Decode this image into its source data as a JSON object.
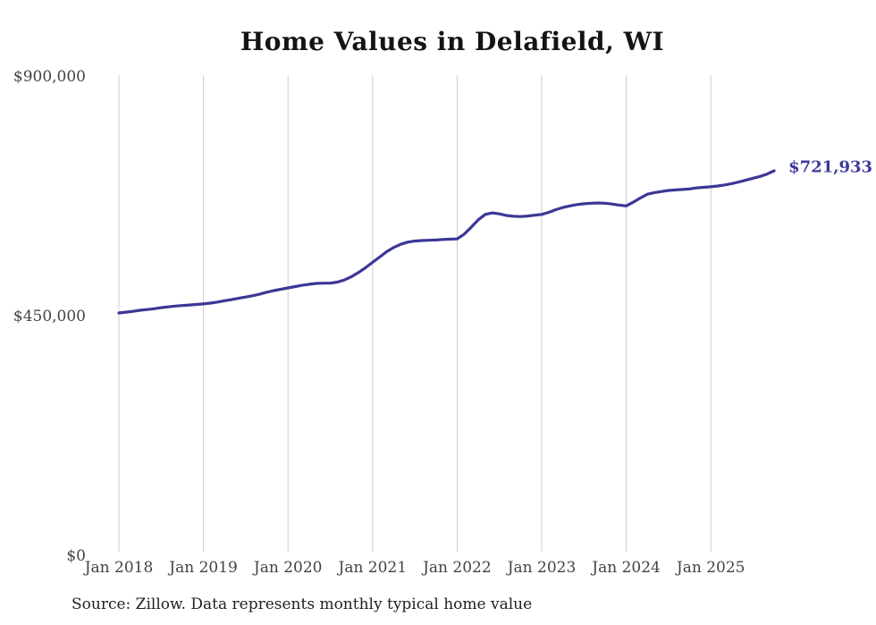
{
  "chart": {
    "title": "Home Values in Delafield, WI",
    "end_label": "$721,933",
    "source": "Source: Zillow. Data represents monthly typical home value",
    "colors": {
      "line": "#3c3796",
      "end_label_text": "#3d3a99",
      "grid": "#cccccc",
      "tick_text": "#434343",
      "title_text": "#141414",
      "source_text": "#222222",
      "background": "#ffffff"
    }
  },
  "chart_data": {
    "type": "line",
    "title": "Home Values in Delafield, WI",
    "xlabel": "",
    "ylabel": "",
    "ylim": [
      0,
      900000
    ],
    "grid": "vertical-only",
    "legend": "none",
    "y_ticks": [
      {
        "value": 0,
        "label": "$0"
      },
      {
        "value": 450000,
        "label": "$450,000"
      },
      {
        "value": 900000,
        "label": "$900,000"
      }
    ],
    "x_ticks": [
      {
        "month": "2018-01",
        "label": "Jan 2018"
      },
      {
        "month": "2019-01",
        "label": "Jan 2019"
      },
      {
        "month": "2020-01",
        "label": "Jan 2020"
      },
      {
        "month": "2021-01",
        "label": "Jan 2021"
      },
      {
        "month": "2022-01",
        "label": "Jan 2022"
      },
      {
        "month": "2023-01",
        "label": "Jan 2023"
      },
      {
        "month": "2024-01",
        "label": "Jan 2024"
      },
      {
        "month": "2025-01",
        "label": "Jan 2025"
      }
    ],
    "last_value": 721933,
    "last_value_label": "$721,933",
    "series": [
      {
        "name": "Typical home value",
        "points": [
          [
            "2018-01",
            455000
          ],
          [
            "2018-02",
            456500
          ],
          [
            "2018-03",
            458000
          ],
          [
            "2018-04",
            460000
          ],
          [
            "2018-05",
            461500
          ],
          [
            "2018-06",
            463000
          ],
          [
            "2018-07",
            465000
          ],
          [
            "2018-08",
            466500
          ],
          [
            "2018-09",
            468000
          ],
          [
            "2018-10",
            469000
          ],
          [
            "2018-11",
            470000
          ],
          [
            "2018-12",
            471000
          ],
          [
            "2019-01",
            472000
          ],
          [
            "2019-02",
            473500
          ],
          [
            "2019-03",
            475500
          ],
          [
            "2019-04",
            478000
          ],
          [
            "2019-05",
            480000
          ],
          [
            "2019-06",
            482500
          ],
          [
            "2019-07",
            485000
          ],
          [
            "2019-08",
            487500
          ],
          [
            "2019-09",
            490500
          ],
          [
            "2019-10",
            494000
          ],
          [
            "2019-11",
            497000
          ],
          [
            "2019-12",
            499500
          ],
          [
            "2020-01",
            502000
          ],
          [
            "2020-02",
            504500
          ],
          [
            "2020-03",
            507000
          ],
          [
            "2020-04",
            509000
          ],
          [
            "2020-05",
            510500
          ],
          [
            "2020-06",
            511000
          ],
          [
            "2020-07",
            511000
          ],
          [
            "2020-08",
            513000
          ],
          [
            "2020-09",
            517000
          ],
          [
            "2020-10",
            523000
          ],
          [
            "2020-11",
            531000
          ],
          [
            "2020-12",
            540000
          ],
          [
            "2021-01",
            550000
          ],
          [
            "2021-02",
            560000
          ],
          [
            "2021-03",
            570000
          ],
          [
            "2021-04",
            578000
          ],
          [
            "2021-05",
            584000
          ],
          [
            "2021-06",
            588000
          ],
          [
            "2021-07",
            590000
          ],
          [
            "2021-08",
            591000
          ],
          [
            "2021-09",
            591500
          ],
          [
            "2021-10",
            592000
          ],
          [
            "2021-11",
            593000
          ],
          [
            "2021-12",
            593500
          ],
          [
            "2022-01",
            594000
          ],
          [
            "2022-02",
            603000
          ],
          [
            "2022-03",
            616000
          ],
          [
            "2022-04",
            630000
          ],
          [
            "2022-05",
            640000
          ],
          [
            "2022-06",
            643000
          ],
          [
            "2022-07",
            641000
          ],
          [
            "2022-08",
            638000
          ],
          [
            "2022-09",
            636500
          ],
          [
            "2022-10",
            636000
          ],
          [
            "2022-11",
            637000
          ],
          [
            "2022-12",
            638500
          ],
          [
            "2023-01",
            640000
          ],
          [
            "2023-02",
            644000
          ],
          [
            "2023-03",
            649000
          ],
          [
            "2023-04",
            653000
          ],
          [
            "2023-05",
            656000
          ],
          [
            "2023-06",
            658500
          ],
          [
            "2023-07",
            660000
          ],
          [
            "2023-08",
            661000
          ],
          [
            "2023-09",
            661500
          ],
          [
            "2023-10",
            661000
          ],
          [
            "2023-11",
            659500
          ],
          [
            "2023-12",
            657500
          ],
          [
            "2024-01",
            656000
          ],
          [
            "2024-02",
            663000
          ],
          [
            "2024-03",
            671000
          ],
          [
            "2024-04",
            678000
          ],
          [
            "2024-05",
            681000
          ],
          [
            "2024-06",
            683000
          ],
          [
            "2024-07",
            685000
          ],
          [
            "2024-08",
            686000
          ],
          [
            "2024-09",
            687000
          ],
          [
            "2024-10",
            688000
          ],
          [
            "2024-11",
            690000
          ],
          [
            "2024-12",
            691000
          ],
          [
            "2025-01",
            692000
          ],
          [
            "2025-02",
            693500
          ],
          [
            "2025-03",
            695500
          ],
          [
            "2025-04",
            698000
          ],
          [
            "2025-05",
            701000
          ],
          [
            "2025-06",
            704500
          ],
          [
            "2025-07",
            708000
          ],
          [
            "2025-08",
            711500
          ],
          [
            "2025-09",
            716000
          ],
          [
            "2025-10",
            721933
          ]
        ]
      }
    ]
  }
}
